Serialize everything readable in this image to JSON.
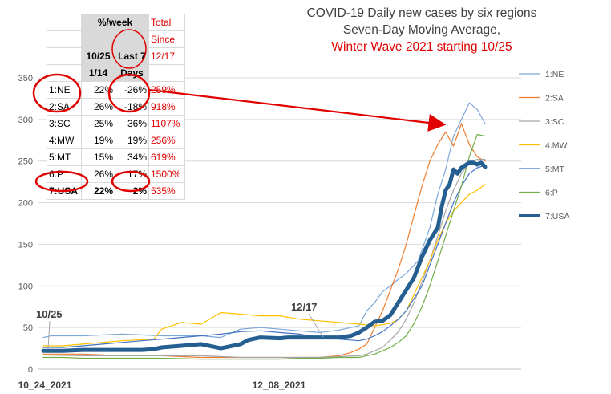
{
  "title_lines": [
    "COVID-19 Daily new cases by six regions",
    "Seven-Day Moving Average,"
  ],
  "title_red": "Winter Wave 2021 starting 10/25",
  "table": {
    "header_top": "%/week",
    "header_total": "Total",
    "header_since": "Since",
    "header_col1": "10/25\n1/14",
    "header_col1_a": "10/25",
    "header_col1_b": "1/14",
    "header_col2_a": "Last 7",
    "header_col2_b": "Days",
    "header_col3": "12/17",
    "rows": [
      {
        "region": "1:NE",
        "c1": "22%",
        "c2": "-26%",
        "c3": "259%"
      },
      {
        "region": "2:SA",
        "c1": "26%",
        "c2": "-18%",
        "c3": "918%"
      },
      {
        "region": "3:SC",
        "c1": "25%",
        "c2": "36%",
        "c3": "1107%"
      },
      {
        "region": "4:MW",
        "c1": "19%",
        "c2": "19%",
        "c3": "256%"
      },
      {
        "region": "5:MT",
        "c1": "15%",
        "c2": "34%",
        "c3": "619%"
      },
      {
        "region": "6:P",
        "c1": "26%",
        "c2": "17%",
        "c3": "1500%"
      },
      {
        "region": "7:USA",
        "c1": "22%",
        "c2": "2%",
        "c3": "535%"
      }
    ]
  },
  "annotations": {
    "a1025": "10/25",
    "a1217": "12/17"
  },
  "colors": {
    "NE": "#7da7d9",
    "SA": "#ed7d31",
    "SC": "#a5a5a5",
    "MW": "#ffc000",
    "MT": "#4472c4",
    "P": "#70ad47",
    "USA": "#255e91",
    "red": "#e00000"
  },
  "chart_data": {
    "type": "line",
    "yticks": [
      0,
      50,
      100,
      150,
      200,
      250,
      300,
      350
    ],
    "ylim": [
      0,
      350
    ],
    "xtick_labels": [
      "10_24_2021",
      "12_08_2021"
    ],
    "legend_position": "right",
    "grid": true,
    "series": [
      {
        "name": "1:NE",
        "x": [
          0,
          2,
          4,
          10,
          20,
          30,
          40,
          45,
          50,
          55,
          60,
          65,
          70,
          75,
          80,
          82,
          84,
          86,
          88,
          90,
          92,
          95,
          98,
          100,
          102,
          104,
          106,
          108,
          110,
          112
        ],
        "values": [
          38,
          40,
          40,
          40,
          42,
          40,
          40,
          38,
          48,
          50,
          48,
          46,
          44,
          47,
          52,
          70,
          80,
          93,
          100,
          108,
          115,
          130,
          170,
          210,
          240,
          280,
          300,
          320,
          312,
          295
        ]
      },
      {
        "name": "2:SA",
        "x": [
          0,
          5,
          10,
          20,
          30,
          40,
          50,
          55,
          60,
          65,
          70,
          75,
          78,
          80,
          82,
          84,
          86,
          88,
          90,
          92,
          94,
          96,
          98,
          100,
          102,
          104,
          106,
          108,
          110,
          112
        ],
        "values": [
          18,
          18,
          18,
          16,
          16,
          14,
          14,
          14,
          14,
          14,
          14,
          16,
          20,
          24,
          30,
          50,
          70,
          95,
          120,
          150,
          185,
          220,
          250,
          270,
          285,
          268,
          295,
          270,
          255,
          250
        ]
      },
      {
        "name": "3:SC",
        "x": [
          0,
          10,
          20,
          30,
          40,
          50,
          55,
          60,
          65,
          70,
          75,
          80,
          82,
          84,
          86,
          88,
          90,
          92,
          94,
          96,
          98,
          100,
          102,
          104,
          106,
          108,
          110,
          112
        ],
        "values": [
          17,
          16,
          16,
          16,
          16,
          14,
          14,
          14,
          14,
          14,
          15,
          16,
          18,
          22,
          26,
          35,
          45,
          60,
          80,
          105,
          130,
          160,
          190,
          215,
          235,
          248,
          252,
          252
        ]
      },
      {
        "name": "4:MW",
        "x": [
          0,
          5,
          10,
          20,
          28,
          30,
          35,
          40,
          45,
          50,
          55,
          60,
          65,
          70,
          75,
          80,
          84,
          88,
          90,
          92,
          94,
          96,
          98,
          100,
          102,
          104,
          106,
          108,
          110,
          112
        ],
        "values": [
          28,
          28,
          30,
          34,
          36,
          48,
          56,
          54,
          68,
          66,
          64,
          64,
          60,
          58,
          56,
          54,
          52,
          55,
          60,
          70,
          90,
          110,
          130,
          155,
          175,
          190,
          200,
          210,
          215,
          222
        ]
      },
      {
        "name": "5:MT",
        "x": [
          0,
          5,
          10,
          15,
          20,
          25,
          30,
          35,
          40,
          45,
          50,
          55,
          60,
          65,
          70,
          75,
          80,
          82,
          84,
          86,
          88,
          90,
          92,
          94,
          96,
          98,
          100,
          102,
          104,
          106,
          108,
          110,
          112
        ],
        "values": [
          26,
          26,
          28,
          30,
          32,
          34,
          36,
          38,
          40,
          42,
          45,
          46,
          44,
          42,
          38,
          36,
          34,
          36,
          40,
          45,
          52,
          60,
          70,
          85,
          100,
          125,
          150,
          175,
          200,
          220,
          235,
          242,
          245
        ]
      },
      {
        "name": "6:P",
        "x": [
          0,
          5,
          10,
          20,
          30,
          40,
          50,
          55,
          60,
          65,
          70,
          75,
          80,
          82,
          84,
          86,
          88,
          90,
          92,
          94,
          96,
          98,
          100,
          102,
          104,
          106,
          108,
          110,
          112
        ],
        "values": [
          14,
          14,
          13,
          13,
          13,
          12,
          12,
          12,
          12,
          13,
          13,
          14,
          14,
          16,
          18,
          22,
          26,
          32,
          40,
          55,
          75,
          100,
          130,
          160,
          190,
          220,
          255,
          282,
          280
        ]
      },
      {
        "name": "7:USA",
        "x": [
          0,
          5,
          10,
          15,
          20,
          25,
          28,
          30,
          35,
          40,
          45,
          50,
          52,
          55,
          60,
          62,
          65,
          70,
          75,
          78,
          80,
          82,
          84,
          86,
          88,
          90,
          92,
          94,
          96,
          98,
          100,
          101,
          102,
          103,
          104,
          105,
          106,
          107,
          108,
          109,
          110,
          111,
          112
        ],
        "values": [
          22,
          22,
          23,
          23,
          23,
          23,
          24,
          26,
          28,
          30,
          25,
          30,
          35,
          38,
          37,
          38,
          38,
          38,
          38,
          40,
          44,
          50,
          57,
          58,
          65,
          80,
          95,
          110,
          135,
          155,
          170,
          195,
          215,
          222,
          240,
          235,
          242,
          245,
          248,
          248,
          246,
          248,
          243
        ]
      }
    ]
  }
}
